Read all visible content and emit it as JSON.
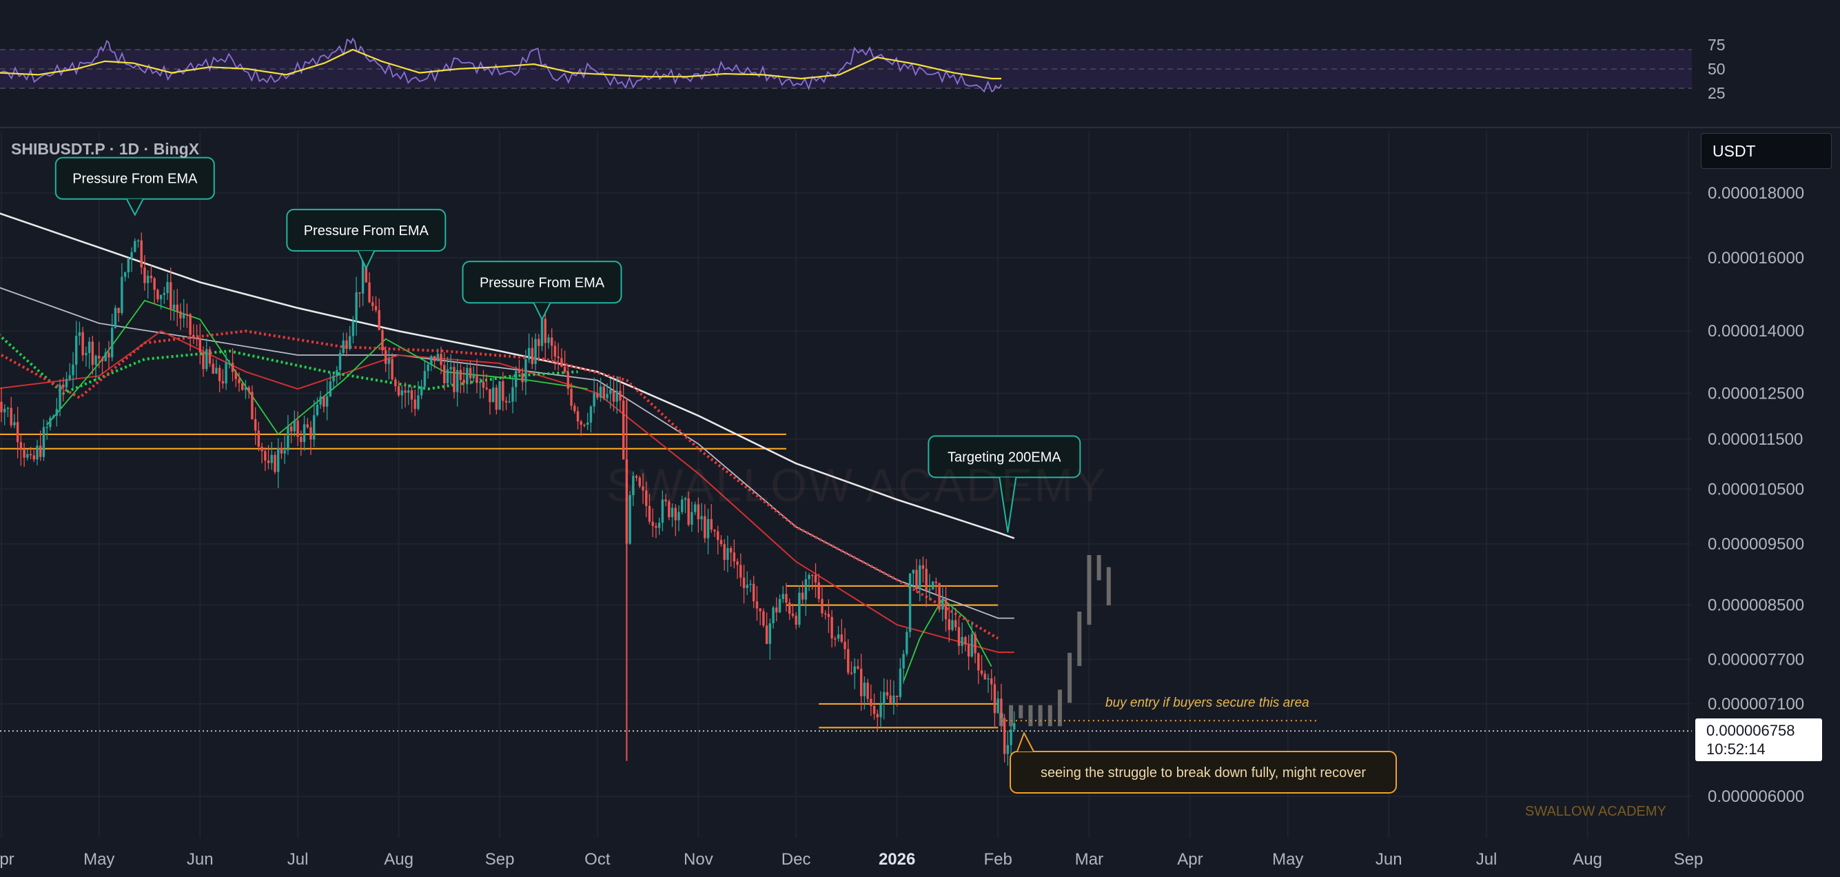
{
  "header": {
    "symbol": "SHIBUSDT.P · 1D · BingX",
    "currency": "USDT"
  },
  "price_tag": {
    "price": "0.000006758",
    "countdown": "10:52:14"
  },
  "watermark": "SWALLOW ACADEMY",
  "credit": "SWALLOW ACADEMY",
  "colors": {
    "background": "#161a25",
    "up": "#26a69a",
    "down": "#ef5350",
    "ema200": "#e8e8e8",
    "ema100": "#b8bbc6",
    "ema50": "#d32f2f",
    "ema20": "#2ecc40",
    "ema_dotted_green": "#1fd14a",
    "ema_dotted_red": "#e53935",
    "levels": "#f5a524",
    "rsi": "#8b6fd6",
    "rsi_ma": "#f5e13a",
    "rsi_band": "#241f3d",
    "projection": "#8a8580",
    "callout_border": "#21b5a0",
    "callout_orange_border": "#f0a02a"
  },
  "chart_data": [
    {
      "type": "candlestick",
      "symbol": "SHIBUSDT.P",
      "timeframe": "1D",
      "exchange": "BingX",
      "y_scale": "log",
      "ylim": [
        5.7e-06,
        2e-05
      ],
      "y_ticks": [
        "0.000018000",
        "0.000016000",
        "0.000014000",
        "0.000012500",
        "0.000011500",
        "0.000010500",
        "0.000009500",
        "0.000008500",
        "0.000007700",
        "0.000007100",
        "0.000006000"
      ],
      "y_tick_values": [
        1.8e-05,
        1.6e-05,
        1.4e-05,
        1.25e-05,
        1.15e-05,
        1.05e-05,
        9.5e-06,
        8.5e-06,
        7.7e-06,
        7.1e-06,
        6e-06
      ],
      "x_ticks": [
        {
          "label": "Apr",
          "date": "2025-04-01"
        },
        {
          "label": "May",
          "date": "2025-05-01"
        },
        {
          "label": "Jun",
          "date": "2025-06-01"
        },
        {
          "label": "Jul",
          "date": "2025-07-01"
        },
        {
          "label": "Aug",
          "date": "2025-08-01"
        },
        {
          "label": "Sep",
          "date": "2025-09-01"
        },
        {
          "label": "Oct",
          "date": "2025-10-01"
        },
        {
          "label": "Nov",
          "date": "2025-11-01"
        },
        {
          "label": "Dec",
          "date": "2025-12-01"
        },
        {
          "label": "2026",
          "date": "2026-01-01"
        },
        {
          "label": "Feb",
          "date": "2026-02-01"
        },
        {
          "label": "Mar",
          "date": "2026-03-01"
        },
        {
          "label": "Apr",
          "date": "2026-04-01"
        },
        {
          "label": "May",
          "date": "2026-05-01"
        },
        {
          "label": "Jun",
          "date": "2026-06-01"
        },
        {
          "label": "Jul",
          "date": "2026-07-01"
        },
        {
          "label": "Aug",
          "date": "2026-08-01"
        },
        {
          "label": "Sep",
          "date": "2026-09-01"
        }
      ],
      "price_path": [
        [
          "2025-03-30",
          1.26e-05
        ],
        [
          "2025-04-06",
          1.17e-05
        ],
        [
          "2025-04-10",
          1.09e-05
        ],
        [
          "2025-04-18",
          1.22e-05
        ],
        [
          "2025-04-25",
          1.38e-05
        ],
        [
          "2025-05-03",
          1.32e-05
        ],
        [
          "2025-05-08",
          1.52e-05
        ],
        [
          "2025-05-12",
          1.68e-05
        ],
        [
          "2025-05-16",
          1.53e-05
        ],
        [
          "2025-05-22",
          1.5e-05
        ],
        [
          "2025-05-30",
          1.38e-05
        ],
        [
          "2025-06-06",
          1.28e-05
        ],
        [
          "2025-06-12",
          1.31e-05
        ],
        [
          "2025-06-18",
          1.19e-05
        ],
        [
          "2025-06-22",
          1.08e-05
        ],
        [
          "2025-06-28",
          1.16e-05
        ],
        [
          "2025-07-05",
          1.17e-05
        ],
        [
          "2025-07-11",
          1.27e-05
        ],
        [
          "2025-07-16",
          1.39e-05
        ],
        [
          "2025-07-21",
          1.56e-05
        ],
        [
          "2025-07-26",
          1.39e-05
        ],
        [
          "2025-08-01",
          1.27e-05
        ],
        [
          "2025-08-06",
          1.23e-05
        ],
        [
          "2025-08-12",
          1.34e-05
        ],
        [
          "2025-08-18",
          1.27e-05
        ],
        [
          "2025-08-24",
          1.32e-05
        ],
        [
          "2025-08-30",
          1.24e-05
        ],
        [
          "2025-09-05",
          1.26e-05
        ],
        [
          "2025-09-11",
          1.34e-05
        ],
        [
          "2025-09-14",
          1.4e-05
        ],
        [
          "2025-09-20",
          1.3e-05
        ],
        [
          "2025-09-26",
          1.19e-05
        ],
        [
          "2025-10-01",
          1.24e-05
        ],
        [
          "2025-10-08",
          1.24e-05
        ],
        [
          "2025-10-10",
          9.7e-06
        ],
        [
          "2025-10-12",
          1.06e-05
        ],
        [
          "2025-10-18",
          1e-05
        ],
        [
          "2025-10-24",
          1.02e-05
        ],
        [
          "2025-10-31",
          1e-05
        ],
        [
          "2025-11-06",
          9.6e-06
        ],
        [
          "2025-11-12",
          9.2e-06
        ],
        [
          "2025-11-18",
          8.7e-06
        ],
        [
          "2025-11-21",
          8e-06
        ],
        [
          "2025-11-26",
          8.6e-06
        ],
        [
          "2025-12-01",
          8.4e-06
        ],
        [
          "2025-12-06",
          8.9e-06
        ],
        [
          "2025-12-12",
          8.2e-06
        ],
        [
          "2025-12-18",
          7.6e-06
        ],
        [
          "2025-12-24",
          7.1e-06
        ],
        [
          "2025-12-30",
          7.1e-06
        ],
        [
          "2026-01-03",
          7.6e-06
        ],
        [
          "2026-01-05",
          9e-06
        ],
        [
          "2026-01-09",
          8.9e-06
        ],
        [
          "2026-01-14",
          8.6e-06
        ],
        [
          "2026-01-18",
          8.1e-06
        ],
        [
          "2026-01-24",
          7.9e-06
        ],
        [
          "2026-01-28",
          7.5e-06
        ],
        [
          "2026-02-01",
          7e-06
        ],
        [
          "2026-02-03",
          6.6e-06
        ],
        [
          "2026-02-06",
          6.8e-06
        ]
      ],
      "ema200": [
        [
          "2025-03-30",
          1.74e-05
        ],
        [
          "2025-05-01",
          1.63e-05
        ],
        [
          "2025-06-01",
          1.53e-05
        ],
        [
          "2025-07-01",
          1.46e-05
        ],
        [
          "2025-08-01",
          1.4e-05
        ],
        [
          "2025-09-01",
          1.35e-05
        ],
        [
          "2025-10-01",
          1.3e-05
        ],
        [
          "2025-11-01",
          1.2e-05
        ],
        [
          "2025-12-01",
          1.1e-05
        ],
        [
          "2026-01-01",
          1.03e-05
        ],
        [
          "2026-02-01",
          9.7e-06
        ],
        [
          "2026-02-06",
          9.6e-06
        ]
      ],
      "ema100": [
        [
          "2025-03-30",
          1.52e-05
        ],
        [
          "2025-05-01",
          1.42e-05
        ],
        [
          "2025-06-01",
          1.38e-05
        ],
        [
          "2025-07-01",
          1.34e-05
        ],
        [
          "2025-08-01",
          1.34e-05
        ],
        [
          "2025-09-01",
          1.31e-05
        ],
        [
          "2025-10-01",
          1.28e-05
        ],
        [
          "2025-11-01",
          1.14e-05
        ],
        [
          "2025-12-01",
          9.8e-06
        ],
        [
          "2026-01-01",
          8.9e-06
        ],
        [
          "2026-02-01",
          8.3e-06
        ],
        [
          "2026-02-06",
          8.3e-06
        ]
      ],
      "ema50": [
        [
          "2025-03-30",
          1.26e-05
        ],
        [
          "2025-05-01",
          1.29e-05
        ],
        [
          "2025-05-20",
          1.4e-05
        ],
        [
          "2025-06-15",
          1.3e-05
        ],
        [
          "2025-07-01",
          1.26e-05
        ],
        [
          "2025-08-01",
          1.34e-05
        ],
        [
          "2025-09-01",
          1.32e-05
        ],
        [
          "2025-10-01",
          1.25e-05
        ],
        [
          "2025-11-01",
          1.08e-05
        ],
        [
          "2025-12-01",
          9.2e-06
        ],
        [
          "2026-01-01",
          8.2e-06
        ],
        [
          "2026-02-01",
          7.8e-06
        ],
        [
          "2026-02-06",
          7.8e-06
        ]
      ],
      "ema20": [
        [
          "2025-04-15",
          1.18e-05
        ],
        [
          "2025-05-01",
          1.32e-05
        ],
        [
          "2025-05-15",
          1.48e-05
        ],
        [
          "2025-06-01",
          1.43e-05
        ],
        [
          "2025-06-25",
          1.16e-05
        ],
        [
          "2025-07-15",
          1.28e-05
        ],
        [
          "2025-07-28",
          1.38e-05
        ],
        [
          "2025-08-15",
          1.3e-05
        ],
        [
          "2025-09-10",
          1.28e-05
        ],
        [
          "2025-09-28",
          1.26e-05
        ]
      ],
      "ema20_recent": [
        [
          "2026-01-03",
          7.4e-06
        ],
        [
          "2026-01-08",
          8e-06
        ],
        [
          "2026-01-15",
          8.6e-06
        ],
        [
          "2026-01-22",
          8.3e-06
        ],
        [
          "2026-01-30",
          7.6e-06
        ]
      ],
      "dotted_green": [
        [
          "2025-03-30",
          1.4e-05
        ],
        [
          "2025-04-20",
          1.25e-05
        ],
        [
          "2025-05-15",
          1.33e-05
        ],
        [
          "2025-06-10",
          1.35e-05
        ],
        [
          "2025-07-10",
          1.3e-05
        ],
        [
          "2025-08-10",
          1.26e-05
        ],
        [
          "2025-09-05",
          1.29e-05
        ],
        [
          "2025-09-25",
          1.3e-05
        ]
      ],
      "dotted_red": [
        [
          "2025-04-01",
          1.34e-05
        ],
        [
          "2025-04-25",
          1.24e-05
        ],
        [
          "2025-05-15",
          1.37e-05
        ],
        [
          "2025-06-15",
          1.4e-05
        ],
        [
          "2025-07-15",
          1.36e-05
        ],
        [
          "2025-08-15",
          1.35e-05
        ],
        [
          "2025-09-15",
          1.33e-05
        ],
        [
          "2025-10-10",
          1.28e-05
        ],
        [
          "2025-11-01",
          1.13e-05
        ],
        [
          "2025-12-01",
          9.8e-06
        ],
        [
          "2026-01-01",
          8.9e-06
        ],
        [
          "2026-02-01",
          8e-06
        ]
      ],
      "levels": [
        {
          "from": "2025-03-30",
          "to": "2025-11-28",
          "price": 1.16e-05
        },
        {
          "from": "2025-03-30",
          "to": "2025-11-28",
          "price": 1.13e-05
        },
        {
          "from": "2025-11-28",
          "to": "2026-02-01",
          "price": 8.8e-06
        },
        {
          "from": "2025-11-28",
          "to": "2026-02-01",
          "price": 8.5e-06
        },
        {
          "from": "2025-12-08",
          "to": "2026-02-01",
          "price": 7.1e-06
        },
        {
          "from": "2025-12-08",
          "to": "2026-02-01",
          "price": 6.8e-06
        }
      ],
      "entry_dotted": {
        "from": "2026-02-02",
        "to": "2026-05-10",
        "price": 7e-06
      },
      "current_price": 6.758e-06,
      "projection": [
        [
          "2026-02-02",
          6.9e-06
        ],
        [
          "2026-02-05",
          7e-06
        ],
        [
          "2026-02-08",
          7e-06
        ],
        [
          "2026-02-11",
          6.9e-06
        ],
        [
          "2026-02-14",
          7e-06
        ],
        [
          "2026-02-17",
          6.9e-06
        ],
        [
          "2026-02-20",
          7.2e-06
        ],
        [
          "2026-02-23",
          7.7e-06
        ],
        [
          "2026-02-26",
          8.3e-06
        ],
        [
          "2026-03-01",
          9.2e-06
        ],
        [
          "2026-03-04",
          9e-06
        ],
        [
          "2026-03-07",
          8.6e-06
        ]
      ],
      "annotations": [
        {
          "text": "Pressure From EMA",
          "date": "2025-05-12",
          "price": 1.73e-05
        },
        {
          "text": "Pressure From EMA",
          "date": "2025-07-22",
          "price": 1.57e-05
        },
        {
          "text": "Pressure From EMA",
          "date": "2025-09-14",
          "price": 1.43e-05
        },
        {
          "text": "Targeting 200EMA",
          "date": "2026-02-04",
          "price": 9.7e-06
        },
        {
          "text": "seeing the struggle to break down fully, might recover",
          "date": "2026-02-09",
          "price": 6.8e-06
        }
      ],
      "entry_note": "buy entry if buyers secure this area"
    },
    {
      "type": "line",
      "indicator": "RSI",
      "ylim": [
        20,
        80
      ],
      "y_ticks": [
        75,
        50,
        25
      ],
      "band": [
        30,
        70
      ],
      "series": [
        {
          "id": "rsi",
          "values": [
            [
              0,
              46
            ],
            [
              10,
              45
            ],
            [
              20,
              40
            ],
            [
              30,
              48
            ],
            [
              40,
              52
            ],
            [
              50,
              60
            ],
            [
              55,
              78
            ],
            [
              60,
              65
            ],
            [
              70,
              52
            ],
            [
              80,
              48
            ],
            [
              90,
              44
            ],
            [
              100,
              52
            ],
            [
              110,
              56
            ],
            [
              120,
              62
            ],
            [
              130,
              45
            ],
            [
              140,
              38
            ],
            [
              150,
              42
            ],
            [
              160,
              55
            ],
            [
              170,
              62
            ],
            [
              180,
              72
            ],
            [
              185,
              80
            ],
            [
              190,
              66
            ],
            [
              200,
              52
            ],
            [
              210,
              42
            ],
            [
              220,
              38
            ],
            [
              230,
              46
            ],
            [
              240,
              60
            ],
            [
              250,
              52
            ],
            [
              260,
              48
            ],
            [
              270,
              45
            ],
            [
              280,
              72
            ],
            [
              290,
              40
            ],
            [
              300,
              42
            ],
            [
              310,
              52
            ],
            [
              320,
              38
            ],
            [
              330,
              34
            ],
            [
              340,
              42
            ],
            [
              350,
              44
            ],
            [
              360,
              40
            ],
            [
              370,
              45
            ],
            [
              380,
              52
            ],
            [
              390,
              48
            ],
            [
              400,
              45
            ],
            [
              410,
              38
            ],
            [
              420,
              34
            ],
            [
              430,
              40
            ],
            [
              440,
              46
            ],
            [
              450,
              70
            ],
            [
              460,
              64
            ],
            [
              470,
              55
            ],
            [
              480,
              50
            ],
            [
              490,
              44
            ],
            [
              500,
              42
            ],
            [
              510,
              32
            ],
            [
              520,
              30
            ],
            [
              525,
              34
            ]
          ]
        },
        {
          "id": "rsi_ma",
          "values": [
            [
              0,
              46
            ],
            [
              20,
              44
            ],
            [
              40,
              50
            ],
            [
              55,
              58
            ],
            [
              70,
              56
            ],
            [
              90,
              46
            ],
            [
              110,
              52
            ],
            [
              130,
              50
            ],
            [
              150,
              44
            ],
            [
              170,
              56
            ],
            [
              185,
              70
            ],
            [
              200,
              58
            ],
            [
              220,
              46
            ],
            [
              240,
              50
            ],
            [
              260,
              52
            ],
            [
              280,
              55
            ],
            [
              300,
              46
            ],
            [
              320,
              44
            ],
            [
              340,
              42
            ],
            [
              360,
              42
            ],
            [
              380,
              45
            ],
            [
              400,
              44
            ],
            [
              420,
              40
            ],
            [
              440,
              44
            ],
            [
              460,
              62
            ],
            [
              480,
              55
            ],
            [
              500,
              46
            ],
            [
              520,
              40
            ],
            [
              525,
              40
            ]
          ]
        }
      ]
    }
  ]
}
